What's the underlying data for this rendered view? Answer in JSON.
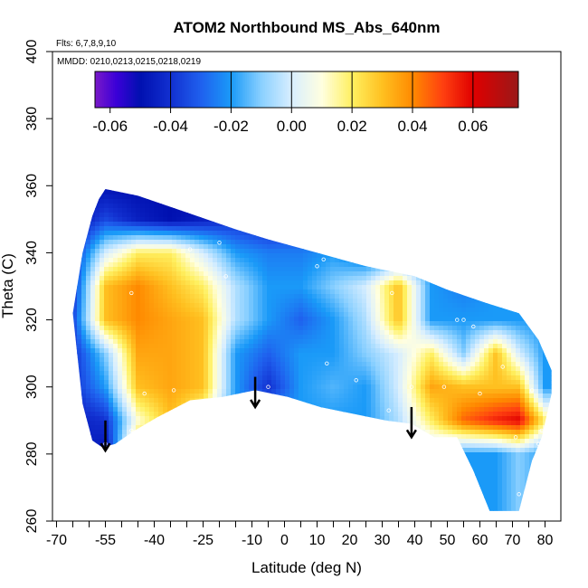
{
  "chart_data": {
    "type": "heatmap",
    "title": "ATOM2 Northbound MS_Abs_640nm",
    "flights_note": "Flts: 6,7,8,9,10",
    "dates_note": "MMDD: 0210,0213,0215,0218,0219",
    "xlabel": "Latitude (deg N)",
    "ylabel": "Theta (C)",
    "xlim": [
      -70,
      85
    ],
    "ylim": [
      260,
      400
    ],
    "x_ticks": [
      -70,
      -55,
      -40,
      -25,
      -10,
      0,
      10,
      20,
      30,
      40,
      50,
      60,
      70,
      80
    ],
    "x_minor_ticks": [
      -65,
      -60,
      -50,
      -45,
      -35,
      -30,
      -20,
      -15,
      -5,
      5,
      15,
      25,
      35,
      45,
      55,
      65,
      75,
      85
    ],
    "y_ticks": [
      260,
      280,
      300,
      320,
      340,
      360,
      380,
      400
    ],
    "colorbar": {
      "range": [
        -0.065,
        0.075
      ],
      "ticks": [
        -0.06,
        -0.04,
        -0.02,
        0.0,
        0.02,
        0.04,
        0.06
      ],
      "tick_labels": [
        "-0.06",
        "-0.04",
        "-0.02",
        "0.00",
        "0.02",
        "0.04",
        "0.06"
      ],
      "divisions": [
        -0.04,
        -0.02,
        0.0,
        0.02,
        0.04,
        0.06
      ],
      "stops": [
        [
          -0.065,
          "#7a19c8"
        ],
        [
          -0.058,
          "#3b00d8"
        ],
        [
          -0.05,
          "#0010b0"
        ],
        [
          -0.04,
          "#1230d0"
        ],
        [
          -0.03,
          "#1f60ee"
        ],
        [
          -0.02,
          "#1a9af8"
        ],
        [
          -0.01,
          "#8ad0ff"
        ],
        [
          0.0,
          "#d8eeff"
        ],
        [
          0.01,
          "#ffffe0"
        ],
        [
          0.02,
          "#fff060"
        ],
        [
          0.03,
          "#ffc020"
        ],
        [
          0.04,
          "#ff8a00"
        ],
        [
          0.05,
          "#ff4010"
        ],
        [
          0.06,
          "#e00000"
        ],
        [
          0.075,
          "#9a1818"
        ]
      ]
    },
    "region": {
      "upper_boundary": [
        [
          -65,
          322
        ],
        [
          -62,
          340
        ],
        [
          -59,
          351
        ],
        [
          -57,
          356
        ],
        [
          -55,
          359
        ],
        [
          -45,
          357
        ],
        [
          -30,
          352
        ],
        [
          -15,
          347
        ],
        [
          -5,
          344
        ],
        [
          10,
          340
        ],
        [
          25,
          336
        ],
        [
          40,
          333
        ],
        [
          50,
          329
        ],
        [
          62,
          325
        ],
        [
          72,
          322
        ],
        [
          78,
          314
        ],
        [
          82,
          305
        ],
        [
          82,
          298
        ]
      ],
      "lower_boundary": [
        [
          -65,
          322
        ],
        [
          -62,
          295
        ],
        [
          -59,
          284
        ],
        [
          -56,
          282
        ],
        [
          -52,
          283
        ],
        [
          -46,
          287
        ],
        [
          -39,
          291
        ],
        [
          -29,
          296
        ],
        [
          -19,
          297
        ],
        [
          -9,
          299
        ],
        [
          1,
          297
        ],
        [
          11,
          294
        ],
        [
          21,
          292
        ],
        [
          31,
          290
        ],
        [
          39,
          289
        ],
        [
          46,
          285
        ],
        [
          53,
          285
        ],
        [
          58,
          275
        ],
        [
          63,
          263
        ],
        [
          72,
          263
        ],
        [
          76,
          278
        ],
        [
          79,
          285
        ],
        [
          82,
          298
        ]
      ]
    },
    "grid_values": {
      "lat": [
        -65,
        -55,
        -45,
        -35,
        -25,
        -15,
        -5,
        5,
        15,
        25,
        35,
        45,
        55,
        65,
        72,
        80
      ],
      "theta": [
        265,
        280,
        290,
        300,
        310,
        320,
        330,
        340,
        350,
        360
      ],
      "z": [
        [
          -0.04,
          -0.02,
          -0.01,
          -0.02,
          -0.01,
          -0.01,
          -0.02,
          -0.02,
          -0.02,
          -0.02,
          -0.02,
          -0.01,
          -0.02,
          -0.02,
          -0.01,
          -0.02
        ],
        [
          -0.04,
          -0.05,
          0.035,
          0.02,
          -0.005,
          -0.02,
          -0.02,
          -0.02,
          -0.02,
          -0.02,
          -0.005,
          -0.005,
          -0.02,
          -0.02,
          -0.01,
          -0.02
        ],
        [
          -0.045,
          -0.04,
          0.01,
          0.03,
          0.01,
          -0.02,
          -0.02,
          -0.02,
          -0.02,
          -0.02,
          -0.005,
          0.02,
          0.045,
          0.055,
          0.06,
          0.02
        ],
        [
          -0.04,
          -0.02,
          0.03,
          0.035,
          0.03,
          -0.02,
          -0.04,
          -0.02,
          -0.015,
          -0.02,
          0.0,
          0.035,
          0.03,
          0.03,
          0.03,
          -0.02
        ],
        [
          -0.04,
          -0.01,
          0.035,
          0.035,
          0.03,
          -0.02,
          -0.03,
          -0.02,
          -0.02,
          -0.01,
          0.0,
          0.02,
          -0.01,
          0.03,
          0.0,
          -0.02
        ],
        [
          -0.035,
          0.03,
          0.04,
          0.035,
          0.03,
          -0.005,
          -0.02,
          -0.03,
          -0.02,
          -0.005,
          0.03,
          -0.02,
          -0.02,
          -0.02,
          -0.02,
          -0.02
        ],
        [
          -0.04,
          0.03,
          0.04,
          0.03,
          0.02,
          -0.005,
          -0.02,
          -0.02,
          -0.01,
          0.0,
          0.03,
          -0.02,
          -0.025,
          -0.02,
          -0.02,
          -0.02
        ],
        [
          -0.04,
          0.0,
          0.02,
          0.02,
          0.0,
          -0.02,
          -0.025,
          -0.025,
          -0.02,
          -0.03,
          -0.03,
          -0.02,
          -0.03,
          -0.03,
          -0.03,
          -0.03
        ],
        [
          -0.05,
          -0.035,
          -0.045,
          -0.05,
          -0.045,
          -0.04,
          -0.045,
          -0.04,
          -0.04,
          -0.04,
          -0.04,
          -0.04,
          -0.04,
          -0.04,
          -0.04,
          -0.04
        ],
        [
          -0.05,
          -0.05,
          -0.05,
          -0.05,
          -0.05,
          -0.05,
          -0.05,
          -0.05,
          -0.05,
          -0.05,
          -0.05,
          -0.05,
          -0.05,
          -0.05,
          -0.05,
          -0.05
        ]
      ]
    },
    "sample_points": [
      [
        -55,
        283
      ],
      [
        -47,
        287
      ],
      [
        -43,
        298
      ],
      [
        -34,
        299
      ],
      [
        -29,
        341
      ],
      [
        -18,
        333
      ],
      [
        -47,
        328
      ],
      [
        -8,
        346
      ],
      [
        -5,
        300
      ],
      [
        -20,
        343
      ],
      [
        12,
        338
      ],
      [
        10,
        336
      ],
      [
        13,
        307
      ],
      [
        22,
        302
      ],
      [
        32,
        293
      ],
      [
        33,
        328
      ],
      [
        39,
        300
      ],
      [
        41,
        335
      ],
      [
        49,
        300
      ],
      [
        53,
        320
      ],
      [
        55,
        320
      ],
      [
        58,
        318
      ],
      [
        60,
        298
      ],
      [
        67,
        306
      ],
      [
        71,
        285
      ],
      [
        72,
        268
      ],
      [
        76,
        299
      ],
      [
        78,
        283
      ],
      [
        79,
        287
      ]
    ],
    "arrows": [
      {
        "lat": -55,
        "theta_top": 290,
        "theta_bottom": 281
      },
      {
        "lat": -9,
        "theta_top": 303,
        "theta_bottom": 294
      },
      {
        "lat": 39,
        "theta_top": 294,
        "theta_bottom": 285
      }
    ]
  }
}
